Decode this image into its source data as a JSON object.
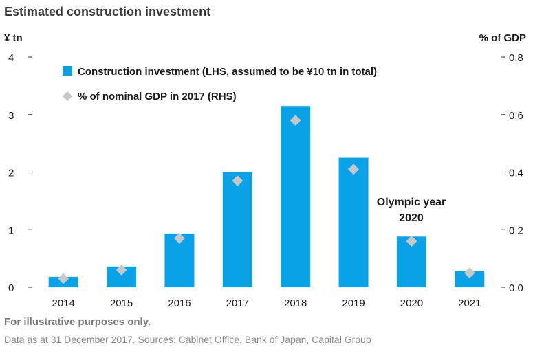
{
  "chart_data": {
    "type": "bar",
    "title": "Estimated construction investment",
    "categories": [
      "2014",
      "2015",
      "2016",
      "2017",
      "2018",
      "2019",
      "2020",
      "2021"
    ],
    "series": [
      {
        "name": "Construction investment (LHS, assumed to be ¥10 tn in total)",
        "type": "bar",
        "axis": "left",
        "color": "#0aa2e6",
        "values": [
          0.18,
          0.36,
          0.93,
          2.0,
          3.15,
          2.25,
          0.88,
          0.28
        ]
      },
      {
        "name": "% of nominal GDP in 2017 (RHS)",
        "type": "scatter",
        "marker": "diamond",
        "axis": "right",
        "color": "#c8c8c8",
        "values": [
          0.03,
          0.06,
          0.17,
          0.37,
          0.58,
          0.41,
          0.16,
          0.05
        ]
      }
    ],
    "y_left": {
      "label": "¥ tn",
      "ylim": [
        0,
        4
      ],
      "ticks": [
        "0",
        "1",
        "2",
        "3",
        "4"
      ]
    },
    "y_right": {
      "label": "% of GDP",
      "ylim": [
        0,
        0.8
      ],
      "ticks": [
        "0.0",
        "0.2",
        "0.4",
        "0.6",
        "0.8"
      ]
    },
    "annotation": {
      "line1": "Olympic year",
      "line2": "2020",
      "category": "2020"
    },
    "legend_placement": "top-left",
    "grid": false
  },
  "footnote": "For illustrative purposes only.",
  "source": "Data as at 31 December 2017. Sources: Cabinet Office, Bank of Japan, Capital Group"
}
